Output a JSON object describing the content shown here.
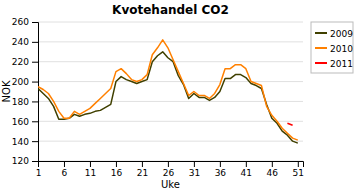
{
  "chart_data": {
    "type": "line",
    "title": "Kvotehandel CO2",
    "x_label": "Uke",
    "y_label": "NOK",
    "xlim": [
      1,
      52
    ],
    "xticks": [
      1,
      6,
      11,
      16,
      21,
      26,
      31,
      36,
      41,
      46,
      51
    ],
    "ylim": [
      120,
      260
    ],
    "yticks": [
      120,
      140,
      160,
      180,
      200,
      220,
      240,
      260
    ],
    "grid": true,
    "legend": "right",
    "series": [
      {
        "name": "2009",
        "color": "#404000",
        "x": [
          1,
          2,
          3,
          4,
          5,
          6,
          7,
          8,
          9,
          10,
          11,
          12,
          13,
          14,
          15,
          16,
          17,
          18,
          19,
          20,
          21,
          22,
          23,
          24,
          25,
          26,
          27,
          28,
          29,
          30,
          31,
          32,
          33,
          34,
          35,
          36,
          37,
          38,
          39,
          40,
          41,
          42,
          43,
          44,
          45,
          46,
          47,
          48,
          49,
          50,
          51
        ],
        "values": [
          193,
          188,
          183,
          175,
          162,
          162,
          163,
          167,
          165,
          167,
          168,
          170,
          171,
          174,
          177,
          200,
          205,
          202,
          200,
          198,
          200,
          202,
          220,
          226,
          230,
          224,
          220,
          206,
          197,
          183,
          188,
          184,
          184,
          181,
          184,
          190,
          203,
          203,
          207,
          207,
          204,
          198,
          196,
          193,
          177,
          163,
          158,
          150,
          146,
          140,
          138
        ]
      },
      {
        "name": "2010",
        "color": "#ff8000",
        "x": [
          1,
          2,
          3,
          4,
          5,
          6,
          7,
          8,
          9,
          10,
          11,
          12,
          13,
          14,
          15,
          16,
          17,
          18,
          19,
          20,
          21,
          22,
          23,
          24,
          25,
          26,
          27,
          28,
          29,
          30,
          31,
          32,
          33,
          34,
          35,
          36,
          37,
          38,
          39,
          40,
          41,
          42,
          43,
          44,
          45,
          46,
          47,
          48,
          49,
          50,
          51
        ],
        "values": [
          195,
          192,
          188,
          180,
          170,
          163,
          163,
          170,
          167,
          170,
          173,
          178,
          183,
          188,
          193,
          210,
          213,
          208,
          202,
          200,
          202,
          207,
          227,
          234,
          242,
          234,
          222,
          210,
          198,
          186,
          190,
          186,
          186,
          183,
          188,
          197,
          213,
          213,
          217,
          217,
          213,
          200,
          198,
          196,
          175,
          166,
          160,
          153,
          148,
          143,
          141
        ]
      },
      {
        "name": "2011",
        "color": "#ff0000",
        "x": [
          49,
          50
        ],
        "values": [
          158,
          156
        ]
      }
    ]
  }
}
